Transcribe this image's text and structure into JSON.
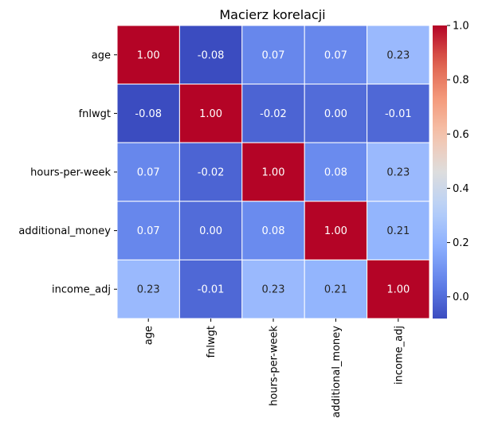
{
  "chart_data": {
    "type": "heatmap",
    "title": "Macierz korelacji",
    "rows": [
      "age",
      "fnlwgt",
      "hours-per-week",
      "additional_money",
      "income_adj"
    ],
    "columns": [
      "age",
      "fnlwgt",
      "hours-per-week",
      "additional_money",
      "income_adj"
    ],
    "values": [
      [
        1.0,
        -0.08,
        0.07,
        0.07,
        0.23
      ],
      [
        -0.08,
        1.0,
        -0.02,
        0.0,
        -0.01
      ],
      [
        0.07,
        -0.02,
        1.0,
        0.08,
        0.23
      ],
      [
        0.07,
        0.0,
        0.08,
        1.0,
        0.21
      ],
      [
        0.23,
        -0.01,
        0.23,
        0.21,
        1.0
      ]
    ],
    "cell_labels": [
      [
        "1.00",
        "-0.08",
        "0.07",
        "0.07",
        "0.23"
      ],
      [
        "-0.08",
        "1.00",
        "-0.02",
        "0.00",
        "-0.01"
      ],
      [
        "0.07",
        "-0.02",
        "1.00",
        "0.08",
        "0.23"
      ],
      [
        "0.07",
        "0.00",
        "0.08",
        "1.00",
        "0.21"
      ],
      [
        "0.23",
        "-0.01",
        "0.23",
        "0.21",
        "1.00"
      ]
    ],
    "colormap": "coolwarm",
    "vmin": -0.08,
    "vmax": 1.0,
    "colorbar_ticks": [
      0.0,
      0.2,
      0.4,
      0.6,
      0.8,
      1.0
    ],
    "colorbar_tick_labels": [
      "0.0",
      "0.2",
      "0.4",
      "0.6",
      "0.8",
      "1.0"
    ],
    "cell_border_color": "#ffffff"
  }
}
